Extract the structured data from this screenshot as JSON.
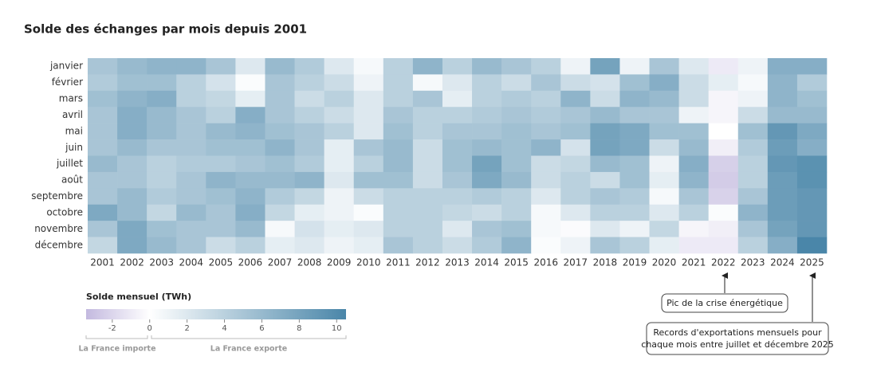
{
  "chart_data": {
    "type": "heatmap",
    "title": "Solde des échanges par mois depuis 2001",
    "x": [
      "2001",
      "2002",
      "2003",
      "2004",
      "2005",
      "2006",
      "2007",
      "2008",
      "2009",
      "2010",
      "2011",
      "2012",
      "2013",
      "2014",
      "2015",
      "2016",
      "2017",
      "2018",
      "2019",
      "2020",
      "2021",
      "2022",
      "2023",
      "2024",
      "2025"
    ],
    "y": [
      "janvier",
      "février",
      "mars",
      "avril",
      "mai",
      "juin",
      "juillet",
      "août",
      "septembre",
      "octobre",
      "novembre",
      "décembre"
    ],
    "values": [
      [
        5,
        6,
        6.5,
        6.5,
        5,
        2,
        6,
        4.5,
        2,
        0.5,
        4,
        6.5,
        4,
        6,
        5,
        4,
        1,
        8,
        1,
        5,
        2,
        -1,
        1,
        7,
        7
      ],
      [
        4.5,
        5.5,
        5.5,
        4,
        2.5,
        0.3,
        5,
        4,
        3,
        1,
        4,
        0.5,
        2,
        4,
        3,
        5,
        3,
        2.5,
        5.5,
        7,
        3,
        1.5,
        0.5,
        6.5,
        4.5
      ],
      [
        5.5,
        6.5,
        7,
        4,
        3.5,
        1.5,
        5,
        3,
        4,
        2,
        4,
        5,
        1.5,
        4,
        4.5,
        4,
        6.5,
        3,
        6.5,
        6,
        3,
        -0.5,
        1,
        6.5,
        5.5
      ],
      [
        5,
        7,
        6,
        5,
        4,
        7,
        5,
        4,
        3,
        2,
        5,
        4,
        4,
        4.5,
        5,
        4.5,
        5,
        6,
        5,
        5,
        1,
        -0.5,
        3,
        6,
        6
      ],
      [
        5,
        7,
        6,
        5,
        6,
        6.5,
        5.5,
        5,
        4,
        2,
        5.5,
        4,
        5,
        5,
        5.5,
        5,
        5.5,
        8,
        7.5,
        5.5,
        5.5,
        0,
        5.5,
        9,
        7.5
      ],
      [
        5,
        6,
        5,
        5,
        5.5,
        5.5,
        6.5,
        5,
        1.5,
        5,
        6,
        3,
        5.5,
        6,
        5.5,
        6.5,
        2.5,
        8,
        7.5,
        3,
        6,
        -0.8,
        4.5,
        8.5,
        7
      ],
      [
        6,
        5,
        4,
        4.5,
        4.5,
        5,
        5.5,
        4.5,
        1.5,
        4,
        6,
        3,
        5.5,
        8,
        5.5,
        3,
        3.5,
        6,
        5.5,
        1,
        7,
        -2.3,
        4,
        9,
        9.5
      ],
      [
        5,
        5,
        4,
        5,
        6.5,
        6,
        6,
        6.5,
        2,
        5.5,
        5.5,
        3,
        5,
        7.5,
        6,
        3,
        4,
        3,
        5.5,
        1.5,
        6.5,
        -2.5,
        4,
        8.5,
        9.5
      ],
      [
        5,
        6,
        4.5,
        5,
        5.5,
        6.5,
        4.5,
        3.5,
        1,
        3,
        4,
        4,
        4,
        4.5,
        4,
        2,
        4,
        5,
        4.5,
        0.5,
        5,
        -2.2,
        5,
        8.5,
        9
      ],
      [
        7.5,
        6,
        3.5,
        6,
        5,
        7,
        3.5,
        1.5,
        1,
        0.3,
        4,
        4,
        3.5,
        3,
        4,
        0.5,
        2,
        4,
        4,
        2,
        4,
        0.3,
        6.5,
        8.5,
        9
      ],
      [
        5,
        7.5,
        5.5,
        5,
        5,
        6,
        0.5,
        2.5,
        1.5,
        2,
        4,
        4,
        2,
        5,
        5.5,
        0.5,
        -0.2,
        2,
        1,
        3.5,
        -0.5,
        -0.8,
        5,
        8,
        9
      ],
      [
        3.5,
        7.5,
        6,
        5,
        3,
        4,
        1.5,
        2,
        1,
        1.5,
        5,
        4,
        3,
        4.5,
        6.5,
        0.3,
        1,
        5,
        4,
        1.5,
        -1,
        -1,
        4,
        7,
        11
      ]
    ],
    "colors": {
      "min": "#c3b9df",
      "mid": "#ffffff",
      "max": "#4a86a9"
    },
    "vlim": [
      -3.4,
      10.5
    ],
    "colorbar_title": "Solde mensuel (TWh)",
    "colorbar_ticks": [
      -2,
      0,
      2,
      4,
      6,
      8,
      10
    ],
    "colorbar_side_labels": [
      "La France importe",
      "La France exporte"
    ],
    "annotations": [
      "Pic de la crise énergétique",
      [
        "Records d'exportations mensuels pour",
        "chaque mois entre juillet et décembre 2025"
      ]
    ]
  }
}
